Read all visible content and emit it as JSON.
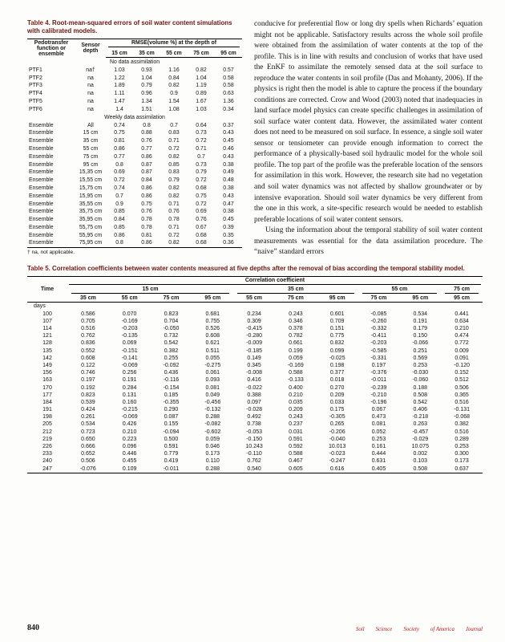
{
  "accent": {
    "caption_red": "#8a1a13",
    "journal_red": "#b01116"
  },
  "table4": {
    "caption_label": "Table 4.",
    "caption_text": "Root-mean-squared errors of soil water content simulations with calibrated models.",
    "col1": "Pedotransfer function or ensemble",
    "col2": "Sensor depth",
    "group_header": "RMSE(volume %) at the depth of",
    "depth_cols": [
      "15 cm",
      "35 cm",
      "55 cm",
      "75 cm",
      "95 cm"
    ],
    "sections": [
      {
        "label": "No data assimilation",
        "rows": [
          [
            "PTF1",
            "na†",
            "1.03",
            "0.93",
            "1.16",
            "0.82",
            "0.57"
          ],
          [
            "PTF2",
            "na",
            "1.22",
            "1.04",
            "0.84",
            "1.04",
            "0.58"
          ],
          [
            "PTF3",
            "na",
            "1.89",
            "0.79",
            "0.82",
            "1.19",
            "0.58"
          ],
          [
            "PTF4",
            "na",
            "1.11",
            "0.96",
            "0.9",
            "0.89",
            "0.63"
          ],
          [
            "PTF5",
            "na",
            "1.47",
            "1.34",
            "1.54",
            "1.67",
            "1.36"
          ],
          [
            "PTF6",
            "na",
            "1.4",
            "1.51",
            "1.08",
            "1.03",
            "0.34"
          ]
        ]
      },
      {
        "label": "Weekly data assimilation",
        "rows": [
          [
            "Ensemble",
            "All",
            "0.74",
            "0.8",
            "0.7",
            "0.64",
            "0.37"
          ],
          [
            "Ensemble",
            "15 cm",
            "0.75",
            "0.88",
            "0.83",
            "0.73",
            "0.43"
          ],
          [
            "Ensemble",
            "35 cm",
            "0.81",
            "0.76",
            "0.71",
            "0.72",
            "0.45"
          ],
          [
            "Ensemble",
            "55 cm",
            "0.86",
            "0.77",
            "0.72",
            "0.71",
            "0.46"
          ],
          [
            "Ensemble",
            "75 cm",
            "0.77",
            "0.86",
            "0.82",
            "0.7",
            "0.43"
          ],
          [
            "Ensemble",
            "95 cm",
            "0.8",
            "0.87",
            "0.85",
            "0.73",
            "0.38"
          ],
          [
            "Ensemble",
            "15,35 cm",
            "0.69",
            "0.87",
            "0.83",
            "0.79",
            "0.49"
          ],
          [
            "Ensemble",
            "15,55 cm",
            "0.72",
            "0.84",
            "0.79",
            "0.72",
            "0.48"
          ],
          [
            "Ensemble",
            "15,75 cm",
            "0.74",
            "0.86",
            "0.82",
            "0.68",
            "0.38"
          ],
          [
            "Ensemble",
            "15,95 cm",
            "0.7",
            "0.86",
            "0.82",
            "0.75",
            "0.43"
          ],
          [
            "Ensemble",
            "35,55 cm",
            "0.9",
            "0.75",
            "0.71",
            "0.72",
            "0.47"
          ],
          [
            "Ensemble",
            "35,75 cm",
            "0.85",
            "0.76",
            "0.76",
            "0.69",
            "0.38"
          ],
          [
            "Ensemble",
            "35,95 cm",
            "0.84",
            "0.78",
            "0.78",
            "0.76",
            "0.45"
          ],
          [
            "Ensemble",
            "55,75 cm",
            "0.85",
            "0.78",
            "0.71",
            "0.67",
            "0.39"
          ],
          [
            "Ensemble",
            "55,95 cm",
            "0.86",
            "0.81",
            "0.72",
            "0.68",
            "0.35"
          ],
          [
            "Ensemble",
            "75,95 cm",
            "0.8",
            "0.86",
            "0.82",
            "0.68",
            "0.36"
          ]
        ]
      }
    ],
    "footnote": "† na, not applicable."
  },
  "body_text": {
    "paragraph1": "conducive for preferential flow or long dry spells when Richards’ equation might not be applicable. Satisfactory results across the whole soil profile were obtained from the assimilation of water contents at the top of the profile. This is in line with results and conclusion of works that have used the EnKF to assimilate the remotely sensed data at the soil surface to reproduce the water contents in soil profile (Das and Mohanty, 2006). If the physics is right then the model is able to capture the process if the boundary conditions are corrected. Crow and Wood (2003) noted that inadequacies in land surface model physics can create specific challenges in assimilation of soil surface water content data. However, the assimilated water content does not need to be measured on soil surface. In essence, a single soil water sensor or tensiometer can provide enough information to correct the performance of a physically-based soil hydraulic model for the whole soil profile. The top part of the profile was the preferable location of the sensors for assimilation in this work. However, the research site had no vegetation and soil water dynamics was not affected by shallow groundwater or by intensive evaporation. Should soil water dynamics be very different from the one in this work, a site-specific research would be needed to establish preferable locations of soil water content sensors.",
    "paragraph2": "Using the information about the temporal stability of soil water content measurements was essential for the data assimilation procedure. The “naive” standard errors"
  },
  "table5": {
    "caption_label": "Table 5.",
    "caption_text": "Correlation coefficients between water contents measured at five depths after the removal of bias according the temporal stability model.",
    "time_header": "Time",
    "top_header": "Correlation coefficient",
    "days_label": "days",
    "groups": [
      {
        "label": "15 cm",
        "cols": [
          "35 cm",
          "55 cm",
          "75 cm",
          "95 cm"
        ]
      },
      {
        "label": "35 cm",
        "cols": [
          "55 cm",
          "75 cm",
          "95 cm"
        ]
      },
      {
        "label": "55 cm",
        "cols": [
          "75 cm",
          "95 cm"
        ]
      },
      {
        "label": "75 cm",
        "cols": [
          "95 cm"
        ]
      }
    ],
    "rows": [
      [
        "100",
        "0.586",
        "0.070",
        "0.823",
        "0.681",
        "0.234",
        "0.243",
        "0.601",
        "-0.085",
        "0.534",
        "0.441"
      ],
      [
        "107",
        "0.705",
        "-0.169",
        "0.704",
        "0.755",
        "0.309",
        "0.346",
        "0.709",
        "-0.260",
        "0.191",
        "0.634"
      ],
      [
        "114",
        "0.516",
        "-0.203",
        "-0.050",
        "0.526",
        "-0.415",
        "0.378",
        "0.151",
        "-0.332",
        "0.179",
        "0.210"
      ],
      [
        "121",
        "0.762",
        "-0.135",
        "0.732",
        "0.608",
        "-0.280",
        "0.782",
        "0.775",
        "-0.411",
        "0.150",
        "0.474"
      ],
      [
        "128",
        "0.836",
        "0.069",
        "0.542",
        "0.621",
        "-0.009",
        "0.661",
        "0.832",
        "-0.203",
        "-0.066",
        "0.772"
      ],
      [
        "135",
        "0.552",
        "-0.151",
        "0.382",
        "0.511",
        "-0.185",
        "0.199",
        "0.099",
        "-0.585",
        "0.251",
        "0.009"
      ],
      [
        "142",
        "0.608",
        "-0.141",
        "0.255",
        "0.055",
        "0.149",
        "0.059",
        "-0.025",
        "-0.331",
        "0.569",
        "0.091"
      ],
      [
        "149",
        "0.122",
        "-0.069",
        "-0.092",
        "-0.275",
        "0.345",
        "-0.169",
        "0.198",
        "0.197",
        "0.253",
        "-0.120"
      ],
      [
        "156",
        "0.746",
        "0.256",
        "0.436",
        "0.061",
        "-0.008",
        "0.588",
        "0.377",
        "-0.376",
        "-0.030",
        "0.152"
      ],
      [
        "163",
        "0.197",
        "0.191",
        "-0.116",
        "0.093",
        "0.416",
        "-0.133",
        "0.018",
        "-0.011",
        "-0.060",
        "0.512"
      ],
      [
        "170",
        "0.192",
        "0.284",
        "-0.154",
        "0.081",
        "-0.022",
        "0.400",
        "0.270",
        "-0.239",
        "0.188",
        "0.506"
      ],
      [
        "177",
        "0.823",
        "0.131",
        "0.185",
        "0.049",
        "0.388",
        "0.210",
        "0.209",
        "-0.210",
        "0.508",
        "0.365"
      ],
      [
        "184",
        "0.539",
        "0.160",
        "-0.355",
        "-0.456",
        "0.097",
        "0.035",
        "0.033",
        "-0.196",
        "0.542",
        "0.516"
      ],
      [
        "191",
        "0.424",
        "-0.215",
        "0.290",
        "-0.132",
        "-0.028",
        "0.209",
        "0.175",
        "0.067",
        "0.406",
        "-0.131"
      ],
      [
        "198",
        "0.261",
        "-0.069",
        "0.087",
        "0.288",
        "0.492",
        "0.243",
        "-0.305",
        "0.473",
        "-0.218",
        "-0.068"
      ],
      [
        "205",
        "0.534",
        "0.426",
        "0.155",
        "-0.082",
        "0.738",
        "0.237",
        "0.265",
        "0.081",
        "0.263",
        "0.382"
      ],
      [
        "212",
        "0.723",
        "0.210",
        "-0.094",
        "-0.602",
        "-0.053",
        "0.031",
        "-0.206",
        "0.052",
        "-0.457",
        "0.516"
      ],
      [
        "219",
        "0.650",
        "0.223",
        "0.500",
        "0.059",
        "-0.150",
        "0.591",
        "-0.040",
        "0.253",
        "-0.029",
        "0.289"
      ],
      [
        "226",
        "0.666",
        "0.096",
        "0.591",
        "0.046",
        "10.243",
        "0.592",
        "10.013",
        "0.161",
        "10.075",
        "0.253"
      ],
      [
        "233",
        "0.652",
        "0.446",
        "0.779",
        "0.173",
        "-0.110",
        "0.588",
        "-0.023",
        "0.444",
        "0.002",
        "0.300"
      ],
      [
        "240",
        "0.506",
        "0.455",
        "0.419",
        "0.110",
        "0.762",
        "0.467",
        "-0.247",
        "0.631",
        "0.103",
        "0.173"
      ],
      [
        "247",
        "-0.076",
        "0.109",
        "-0.011",
        "0.288",
        "0.540",
        "0.605",
        "0.616",
        "0.405",
        "0.508",
        "0.637"
      ]
    ]
  },
  "footer": {
    "page_number": "840",
    "journal_words": [
      "Soil",
      "Science",
      "Society",
      "of America",
      "Journal"
    ]
  }
}
